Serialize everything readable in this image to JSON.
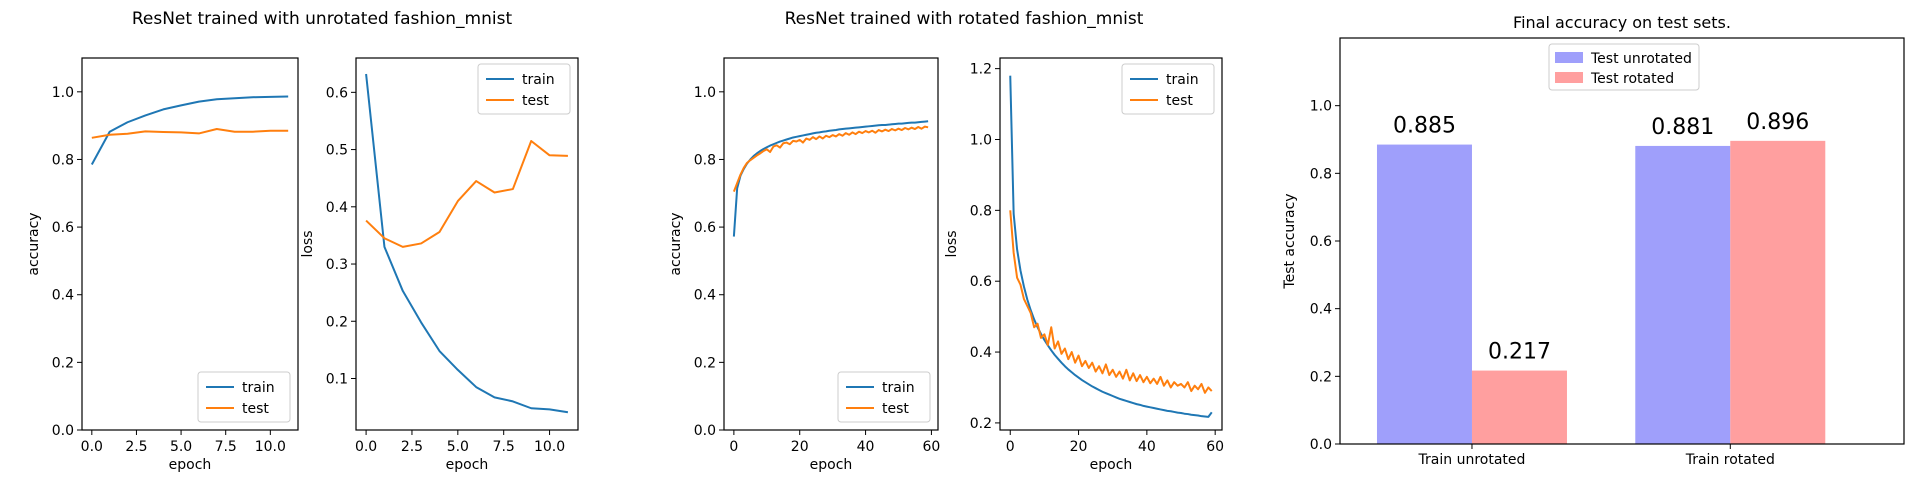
{
  "figure": {
    "group_titles": [
      "ResNet trained with unrotated fashion_mnist",
      "ResNet trained with rotated fashion_mnist"
    ]
  },
  "chart_data": [
    {
      "id": "unrot-acc",
      "type": "line",
      "xlabel": "epoch",
      "ylabel": "accuracy",
      "xlim": [
        -0.55,
        11.55
      ],
      "ylim": [
        0.0,
        1.1
      ],
      "xticks": [
        0,
        2.5,
        5,
        7.5,
        10
      ],
      "xtick_labels": [
        "0.0",
        "2.5",
        "5.0",
        "7.5",
        "10.0"
      ],
      "yticks": [
        0,
        0.2,
        0.4,
        0.6,
        0.8,
        1.0
      ],
      "ytick_labels": [
        "0.0",
        "0.2",
        "0.4",
        "0.6",
        "0.8",
        "1.0"
      ],
      "legend": "lower-right",
      "x": [
        0,
        1,
        2,
        3,
        4,
        5,
        6,
        7,
        8,
        9,
        10,
        11
      ],
      "series": [
        {
          "name": "train",
          "color": "#1f77b4",
          "values": [
            0.785,
            0.882,
            0.91,
            0.93,
            0.948,
            0.96,
            0.971,
            0.978,
            0.981,
            0.984,
            0.985,
            0.986
          ]
        },
        {
          "name": "test",
          "color": "#ff7f0e",
          "values": [
            0.864,
            0.873,
            0.876,
            0.883,
            0.881,
            0.88,
            0.877,
            0.89,
            0.882,
            0.882,
            0.885,
            0.885
          ]
        }
      ]
    },
    {
      "id": "unrot-loss",
      "type": "line",
      "xlabel": "epoch",
      "ylabel": "loss",
      "xlim": [
        -0.55,
        11.55
      ],
      "ylim": [
        0.01,
        0.66
      ],
      "xticks": [
        0,
        2.5,
        5,
        7.5,
        10
      ],
      "xtick_labels": [
        "0.0",
        "2.5",
        "5.0",
        "7.5",
        "10.0"
      ],
      "yticks": [
        0.1,
        0.2,
        0.3,
        0.4,
        0.5,
        0.6
      ],
      "ytick_labels": [
        "0.1",
        "0.2",
        "0.3",
        "0.4",
        "0.5",
        "0.6"
      ],
      "legend": "upper-right",
      "x": [
        0,
        1,
        2,
        3,
        4,
        5,
        6,
        7,
        8,
        9,
        10,
        11
      ],
      "series": [
        {
          "name": "train",
          "color": "#1f77b4",
          "values": [
            0.632,
            0.33,
            0.253,
            0.198,
            0.148,
            0.115,
            0.085,
            0.067,
            0.06,
            0.048,
            0.046,
            0.041
          ]
        },
        {
          "name": "test",
          "color": "#ff7f0e",
          "values": [
            0.376,
            0.345,
            0.33,
            0.336,
            0.356,
            0.41,
            0.445,
            0.425,
            0.431,
            0.515,
            0.49,
            0.489
          ]
        }
      ]
    },
    {
      "id": "rot-acc",
      "type": "line",
      "xlabel": "epoch",
      "ylabel": "accuracy",
      "xlim": [
        -3,
        62
      ],
      "ylim": [
        0.0,
        1.1
      ],
      "xticks": [
        0,
        20,
        40,
        60
      ],
      "xtick_labels": [
        "0",
        "20",
        "40",
        "60"
      ],
      "yticks": [
        0,
        0.2,
        0.4,
        0.6,
        0.8,
        1.0
      ],
      "ytick_labels": [
        "0.0",
        "0.2",
        "0.4",
        "0.6",
        "0.8",
        "1.0"
      ],
      "legend": "lower-right",
      "x": [
        0,
        1,
        2,
        3,
        4,
        5,
        6,
        7,
        8,
        9,
        10,
        11,
        12,
        13,
        14,
        15,
        16,
        17,
        18,
        19,
        20,
        21,
        22,
        23,
        24,
        25,
        26,
        27,
        28,
        29,
        30,
        31,
        32,
        33,
        34,
        35,
        36,
        37,
        38,
        39,
        40,
        41,
        42,
        43,
        44,
        45,
        46,
        47,
        48,
        49,
        50,
        51,
        52,
        53,
        54,
        55,
        56,
        57,
        58,
        59
      ],
      "series": [
        {
          "name": "train",
          "color": "#1f77b4",
          "values": [
            0.572,
            0.715,
            0.752,
            0.772,
            0.788,
            0.8,
            0.81,
            0.818,
            0.825,
            0.831,
            0.836,
            0.841,
            0.845,
            0.849,
            0.853,
            0.856,
            0.859,
            0.862,
            0.865,
            0.867,
            0.869,
            0.871,
            0.873,
            0.875,
            0.877,
            0.879,
            0.88,
            0.882,
            0.883,
            0.885,
            0.886,
            0.887,
            0.889,
            0.89,
            0.891,
            0.892,
            0.893,
            0.894,
            0.895,
            0.896,
            0.897,
            0.898,
            0.899,
            0.9,
            0.901,
            0.902,
            0.902,
            0.903,
            0.904,
            0.905,
            0.906,
            0.906,
            0.907,
            0.908,
            0.909,
            0.909,
            0.91,
            0.911,
            0.912,
            0.913
          ]
        },
        {
          "name": "test",
          "color": "#ff7f0e",
          "values": [
            0.705,
            0.73,
            0.755,
            0.775,
            0.79,
            0.798,
            0.805,
            0.812,
            0.818,
            0.825,
            0.83,
            0.822,
            0.838,
            0.842,
            0.835,
            0.848,
            0.85,
            0.845,
            0.855,
            0.853,
            0.858,
            0.85,
            0.862,
            0.858,
            0.866,
            0.86,
            0.868,
            0.862,
            0.87,
            0.866,
            0.872,
            0.868,
            0.875,
            0.87,
            0.878,
            0.873,
            0.88,
            0.875,
            0.882,
            0.878,
            0.884,
            0.88,
            0.885,
            0.879,
            0.887,
            0.883,
            0.888,
            0.884,
            0.89,
            0.886,
            0.891,
            0.887,
            0.893,
            0.889,
            0.894,
            0.89,
            0.896,
            0.891,
            0.897,
            0.895
          ]
        }
      ]
    },
    {
      "id": "rot-loss",
      "type": "line",
      "xlabel": "epoch",
      "ylabel": "loss",
      "xlim": [
        -3,
        62
      ],
      "ylim": [
        0.18,
        1.23
      ],
      "xticks": [
        0,
        20,
        40,
        60
      ],
      "xtick_labels": [
        "0",
        "20",
        "40",
        "60"
      ],
      "yticks": [
        0.2,
        0.4,
        0.6,
        0.8,
        1.0,
        1.2
      ],
      "ytick_labels": [
        "0.2",
        "0.4",
        "0.6",
        "0.8",
        "1.0",
        "1.2"
      ],
      "legend": "upper-right",
      "x": [
        0,
        1,
        2,
        3,
        4,
        5,
        6,
        7,
        8,
        9,
        10,
        11,
        12,
        13,
        14,
        15,
        16,
        17,
        18,
        19,
        20,
        21,
        22,
        23,
        24,
        25,
        26,
        27,
        28,
        29,
        30,
        31,
        32,
        33,
        34,
        35,
        36,
        37,
        38,
        39,
        40,
        41,
        42,
        43,
        44,
        45,
        46,
        47,
        48,
        49,
        50,
        51,
        52,
        53,
        54,
        55,
        56,
        57,
        58,
        59
      ],
      "series": [
        {
          "name": "train",
          "color": "#1f77b4",
          "values": [
            1.18,
            0.79,
            0.69,
            0.63,
            0.585,
            0.548,
            0.518,
            0.492,
            0.47,
            0.451,
            0.434,
            0.419,
            0.405,
            0.392,
            0.381,
            0.37,
            0.36,
            0.351,
            0.343,
            0.335,
            0.328,
            0.321,
            0.315,
            0.309,
            0.303,
            0.298,
            0.293,
            0.288,
            0.284,
            0.28,
            0.276,
            0.272,
            0.268,
            0.265,
            0.262,
            0.259,
            0.256,
            0.253,
            0.251,
            0.248,
            0.246,
            0.244,
            0.242,
            0.24,
            0.238,
            0.236,
            0.234,
            0.233,
            0.231,
            0.229,
            0.228,
            0.226,
            0.225,
            0.223,
            0.222,
            0.221,
            0.219,
            0.218,
            0.217,
            0.23
          ]
        },
        {
          "name": "test",
          "color": "#ff7f0e",
          "values": [
            0.8,
            0.68,
            0.61,
            0.59,
            0.55,
            0.53,
            0.51,
            0.47,
            0.48,
            0.44,
            0.45,
            0.42,
            0.47,
            0.41,
            0.43,
            0.395,
            0.41,
            0.38,
            0.4,
            0.37,
            0.39,
            0.36,
            0.375,
            0.355,
            0.37,
            0.345,
            0.36,
            0.34,
            0.365,
            0.335,
            0.35,
            0.33,
            0.345,
            0.325,
            0.35,
            0.32,
            0.34,
            0.318,
            0.335,
            0.315,
            0.33,
            0.312,
            0.325,
            0.31,
            0.33,
            0.305,
            0.32,
            0.3,
            0.315,
            0.305,
            0.31,
            0.3,
            0.315,
            0.29,
            0.305,
            0.295,
            0.31,
            0.285,
            0.3,
            0.29
          ]
        }
      ]
    },
    {
      "id": "final-acc",
      "type": "bar",
      "title": "Final accuracy on test sets.",
      "ylabel": "Test accuracy",
      "categories": [
        "Train unrotated",
        "Train rotated"
      ],
      "ylim": [
        0.0,
        1.2
      ],
      "yticks": [
        0,
        0.2,
        0.4,
        0.6,
        0.8,
        1.0
      ],
      "ytick_labels": [
        "0.0",
        "0.2",
        "0.4",
        "0.6",
        "0.8",
        "1.0"
      ],
      "legend": "upper-center",
      "series": [
        {
          "name": "Test unrotated",
          "color": "#9f9ffb",
          "values": [
            0.885,
            0.881
          ],
          "labels": [
            "0.885",
            "0.881"
          ]
        },
        {
          "name": "Test rotated",
          "color": "#ff9f9f",
          "values": [
            0.217,
            0.896
          ],
          "labels": [
            "0.217",
            "0.896"
          ]
        }
      ]
    }
  ]
}
